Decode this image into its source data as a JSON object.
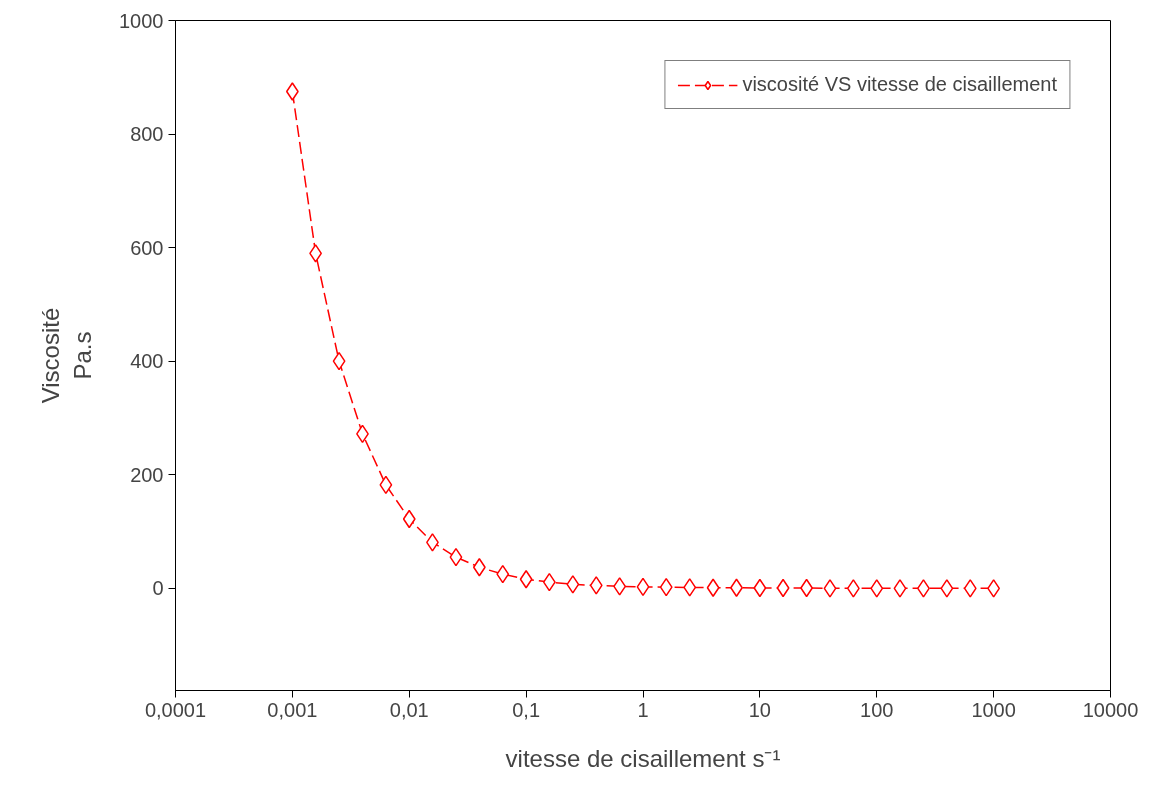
{
  "chart_data": {
    "type": "line",
    "xlabel": "vitesse de cisaillement s⁻¹",
    "ylabel": "Viscosité\nPa.s",
    "log": "x",
    "x": [
      0.001,
      0.00158,
      0.00251,
      0.00398,
      0.00631,
      0.01,
      0.0158,
      0.0251,
      0.0398,
      0.0631,
      0.1,
      0.158,
      0.251,
      0.398,
      0.631,
      1,
      1.58,
      2.51,
      3.98,
      6.31,
      10,
      15.8,
      25.1,
      39.8,
      63.1,
      100,
      158,
      251,
      398,
      631,
      1000
    ],
    "series": [
      {
        "name": "viscosité VS vitesse de cisaillement",
        "color": "#ff0000",
        "values": [
          875,
          590,
          400,
          272,
          182,
          122,
          81,
          55,
          37,
          25,
          16,
          11,
          7,
          5,
          3.5,
          2.5,
          2,
          1.5,
          1,
          1,
          0.5,
          0.5,
          0.5,
          0,
          0,
          0,
          0,
          0,
          0,
          0,
          0
        ]
      }
    ],
    "xlim": [
      0.0001,
      10000
    ],
    "xticks": [
      {
        "value": 0.0001,
        "label": "0,0001"
      },
      {
        "value": 0.001,
        "label": "0,001"
      },
      {
        "value": 0.01,
        "label": "0,01"
      },
      {
        "value": 0.1,
        "label": "0,1"
      },
      1,
      10,
      100,
      1000,
      10000
    ],
    "ylim": [
      -180,
      1000
    ],
    "yticks": [
      0,
      200,
      400,
      600,
      800,
      1000
    ],
    "grid": false,
    "legend": "top right",
    "marker": "diamond",
    "line_style": "dashed"
  }
}
